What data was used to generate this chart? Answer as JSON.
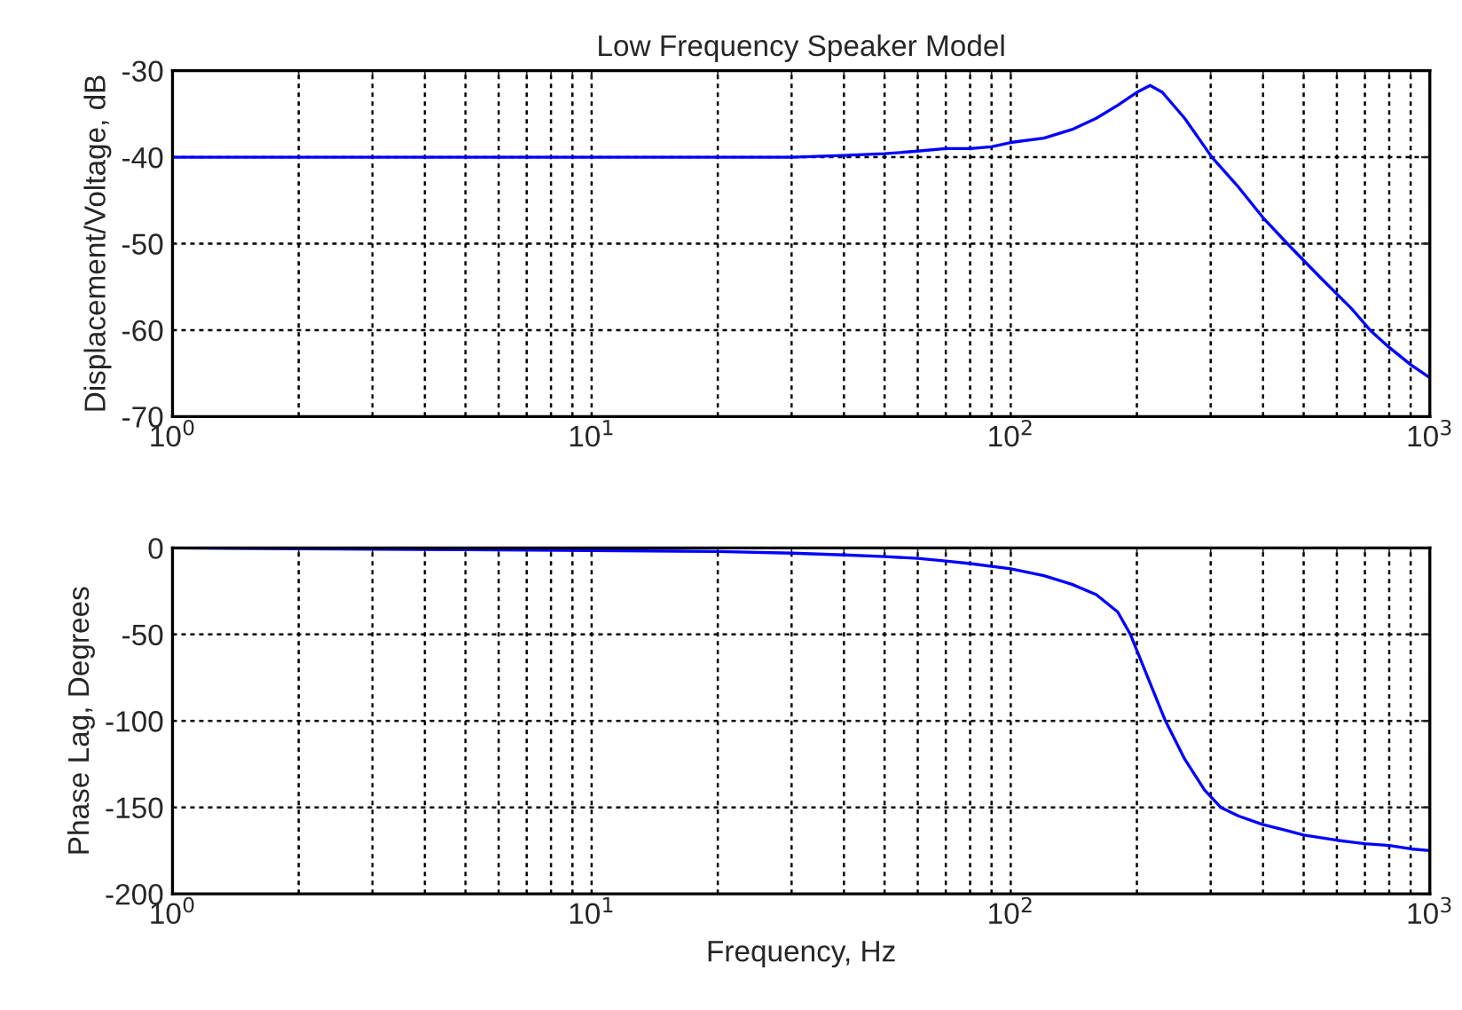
{
  "chart_data": [
    {
      "type": "line",
      "title": "Low Frequency Speaker Model",
      "ylabel": "Displacement/Voltage, dB",
      "log": "x",
      "grid": true,
      "line_style": "solid",
      "marker": "none",
      "xlim": [
        1,
        1000
      ],
      "xticks": [
        {
          "value": 1,
          "label": "10$^{0}$"
        },
        {
          "value": 10,
          "label": "10$^{1}$"
        },
        {
          "value": 100,
          "label": "10$^{2}$"
        },
        {
          "value": 1000,
          "label": "10$^{3}$"
        }
      ],
      "ylim": [
        -70,
        -30
      ],
      "yticks": [
        -70,
        -60,
        -50,
        -40,
        -30
      ],
      "series": [
        {
          "color": "#0000ff",
          "x": [
            1,
            5,
            10,
            20,
            30,
            40,
            50,
            60,
            70,
            80,
            90,
            100,
            120,
            140,
            160,
            180,
            200,
            215,
            230,
            260,
            302,
            350,
            400,
            457,
            550,
            650,
            720,
            800,
            900,
            1000
          ],
          "values": [
            -40,
            -40,
            -40,
            -40,
            -40,
            -39.8,
            -39.6,
            -39.3,
            -39,
            -39,
            -38.8,
            -38.3,
            -37.8,
            -36.8,
            -35.5,
            -34,
            -32.5,
            -31.7,
            -32.5,
            -35.5,
            -40,
            -43.5,
            -47,
            -50,
            -54,
            -57.5,
            -60,
            -62,
            -64,
            -65.5
          ]
        }
      ]
    },
    {
      "type": "line",
      "xlabel": "Frequency, Hz",
      "ylabel": "Phase Lag, Degrees",
      "log": "x",
      "grid": true,
      "line_style": "solid",
      "marker": "none",
      "xlim": [
        1,
        1000
      ],
      "xticks": [
        {
          "value": 1,
          "label": "10$^{0}$"
        },
        {
          "value": 10,
          "label": "10$^{1}$"
        },
        {
          "value": 100,
          "label": "10$^{2}$"
        },
        {
          "value": 1000,
          "label": "10$^{3}$"
        }
      ],
      "ylim": [
        -200,
        0
      ],
      "yticks": [
        -200,
        -150,
        -100,
        -50,
        0
      ],
      "series": [
        {
          "color": "#0000ff",
          "x": [
            1,
            5,
            10,
            20,
            30,
            40,
            50,
            60,
            70,
            80,
            100,
            120,
            140,
            160,
            180,
            193,
            210,
            234,
            260,
            290,
            317,
            350,
            400,
            450,
            500,
            600,
            700,
            800,
            900,
            1000
          ],
          "values": [
            0,
            -1,
            -1.5,
            -2,
            -3,
            -4,
            -5,
            -6,
            -7.5,
            -9,
            -12,
            -16,
            -21,
            -27,
            -37,
            -50,
            -72,
            -100,
            -122,
            -140,
            -150,
            -155,
            -160,
            -163,
            -166,
            -169,
            -171,
            -172,
            -174,
            -175
          ]
        }
      ]
    }
  ]
}
